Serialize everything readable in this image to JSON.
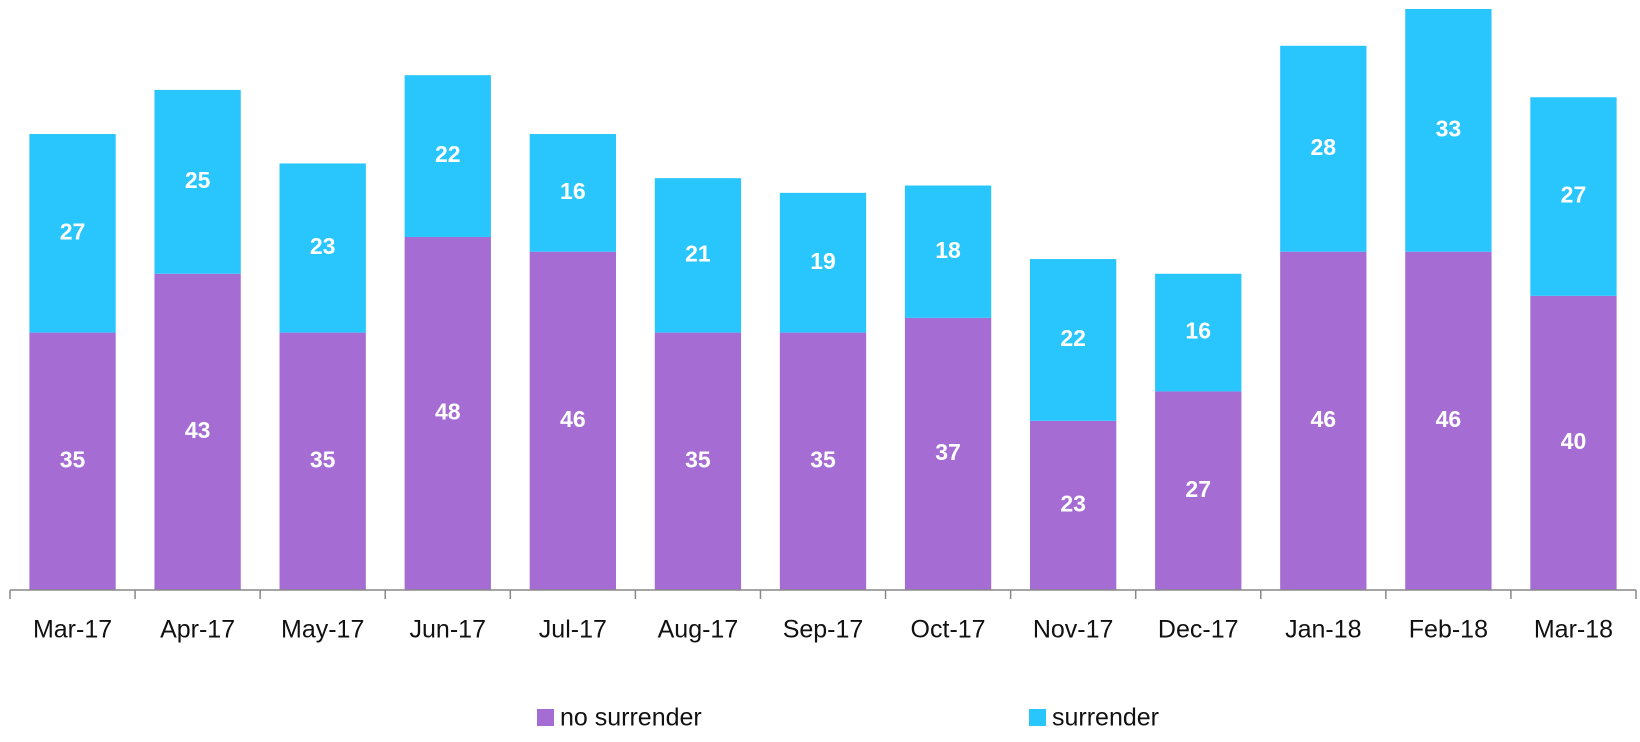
{
  "chart_data": {
    "type": "stacked_bar",
    "categories": [
      "Mar-17",
      "Apr-17",
      "May-17",
      "Jun-17",
      "Jul-17",
      "Aug-17",
      "Sep-17",
      "Oct-17",
      "Nov-17",
      "Dec-17",
      "Jan-18",
      "Feb-18",
      "Mar-18"
    ],
    "series": [
      {
        "name": "no surrender",
        "color": "#a56dd3",
        "values": [
          35,
          43,
          35,
          48,
          46,
          35,
          35,
          37,
          23,
          27,
          46,
          46,
          40
        ]
      },
      {
        "name": "surrender",
        "color": "#29c6fd",
        "values": [
          27,
          25,
          23,
          22,
          16,
          21,
          19,
          18,
          22,
          16,
          28,
          33,
          27
        ]
      }
    ],
    "legend": "bottom"
  }
}
